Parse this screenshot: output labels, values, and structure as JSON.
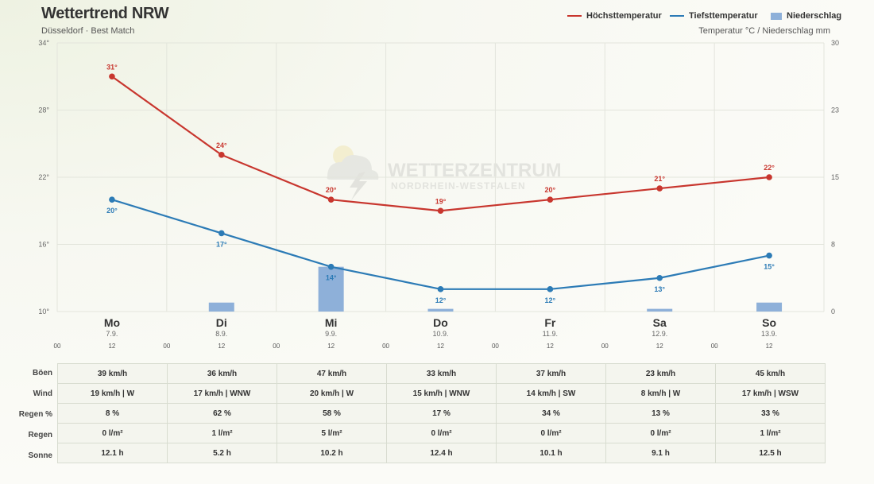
{
  "header": {
    "title": "Wettertrend NRW",
    "subtitle": "Düsseldorf · Best Match",
    "units": "Temperatur °C / Niederschlag mm"
  },
  "legend": {
    "max_label": "Höchsttemperatur",
    "min_label": "Tiefsttemperatur",
    "rain_label": "Niederschlag"
  },
  "watermark": {
    "line1": "WETTERZENTRUM",
    "line2": "NORDRHEIN-WESTFALEN"
  },
  "colors": {
    "max": "#c8362e",
    "min": "#2c7bb6",
    "rain": "#8eb0d9"
  },
  "chart_data": {
    "type": "line",
    "categories": [
      "Mo",
      "Di",
      "Mi",
      "Do",
      "Fr",
      "Sa",
      "So"
    ],
    "dates": [
      "7.9.",
      "8.9.",
      "9.9.",
      "10.9.",
      "11.9.",
      "12.9.",
      "13.9."
    ],
    "hour_ticks": [
      "00",
      "12"
    ],
    "series": [
      {
        "name": "Höchsttemperatur",
        "type": "line",
        "axis": "left",
        "values": [
          31,
          24,
          20,
          19,
          20,
          21,
          22
        ],
        "labels": [
          "31°",
          "24°",
          "20°",
          "19°",
          "20°",
          "21°",
          "22°"
        ]
      },
      {
        "name": "Tiefsttemperatur",
        "type": "line",
        "axis": "left",
        "values": [
          20,
          17,
          14,
          12,
          12,
          13,
          15
        ],
        "labels": [
          "20°",
          "17°",
          "14°",
          "12°",
          "12°",
          "13°",
          "15°"
        ]
      },
      {
        "name": "Niederschlag",
        "type": "bar",
        "axis": "right",
        "values": [
          0,
          1,
          5,
          0.3,
          0,
          0.3,
          1
        ]
      }
    ],
    "y_left": {
      "min": 10,
      "max": 34,
      "ticks": [
        "10°",
        "16°",
        "22°",
        "28°",
        "34°"
      ]
    },
    "y_right": {
      "min": 0,
      "max": 30,
      "ticks": [
        "0",
        "8",
        "15",
        "23",
        "30"
      ]
    },
    "grid": true,
    "legend_position": "top-right"
  },
  "table": {
    "rows": [
      {
        "label": "Böen",
        "cells": [
          "39 km/h",
          "36 km/h",
          "47 km/h",
          "33 km/h",
          "37 km/h",
          "23 km/h",
          "45 km/h"
        ]
      },
      {
        "label": "Wind",
        "cells": [
          "19 km/h | W",
          "17 km/h | WNW",
          "20 km/h | W",
          "15 km/h | WNW",
          "14 km/h | SW",
          "8 km/h | W",
          "17 km/h | WSW"
        ]
      },
      {
        "label": "Regen %",
        "cells": [
          "8 %",
          "62 %",
          "58 %",
          "17 %",
          "34 %",
          "13 %",
          "33 %"
        ]
      },
      {
        "label": "Regen",
        "cells": [
          "0 l/m²",
          "1 l/m²",
          "5 l/m²",
          "0 l/m²",
          "0 l/m²",
          "0 l/m²",
          "1 l/m²"
        ]
      },
      {
        "label": "Sonne",
        "cells": [
          "12.1 h",
          "5.2 h",
          "10.2 h",
          "12.4 h",
          "10.1 h",
          "9.1 h",
          "12.5 h"
        ]
      }
    ]
  }
}
